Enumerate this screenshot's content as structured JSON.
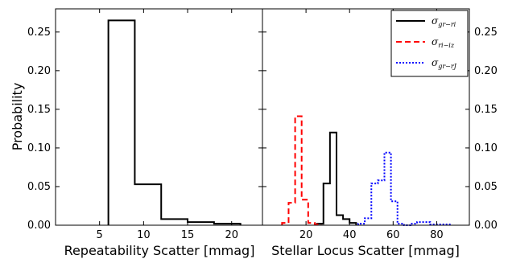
{
  "chart_data": [
    {
      "type": "histogram",
      "xlabel": "Repeatability Scatter [mmag]",
      "ylabel": "Probability",
      "xlim": [
        0,
        23.5
      ],
      "ylim": [
        0,
        0.28
      ],
      "xticks": [
        5,
        10,
        15,
        20
      ],
      "xtick_labels": [
        "5",
        "10",
        "15",
        "20"
      ],
      "yticks": [
        0.0,
        0.05,
        0.1,
        0.15,
        0.2,
        0.25
      ],
      "ytick_labels": [
        "0.00",
        "0.05",
        "0.10",
        "0.15",
        "0.20",
        "0.25"
      ],
      "series": [
        {
          "bin_edges": [
            6,
            9,
            12,
            15,
            18,
            21
          ],
          "values": [
            0.265,
            0.053,
            0.008,
            0.004,
            0.002
          ],
          "color": "#000000",
          "linestyle": "solid"
        }
      ]
    },
    {
      "type": "histogram",
      "xlabel": "Stellar Locus Scatter [mmag]",
      "ylabel": "",
      "xlim": [
        0,
        95
      ],
      "ylim": [
        0,
        0.28
      ],
      "xticks": [
        20,
        40,
        60,
        80
      ],
      "xtick_labels": [
        "20",
        "40",
        "60",
        "80"
      ],
      "yticks": [
        0.0,
        0.05,
        0.1,
        0.15,
        0.2,
        0.25
      ],
      "ytick_labels": [
        "0.00",
        "0.05",
        "0.10",
        "0.15",
        "0.20",
        "0.25"
      ],
      "legend_position": "top-right",
      "series": [
        {
          "name": "σ_{gr−ri}",
          "legend_main": "σ",
          "legend_sub": "gr−ri",
          "color": "#000000",
          "linestyle": "solid",
          "bin_edges": [
            25,
            28,
            31,
            34,
            37,
            40,
            43
          ],
          "values": [
            0.002,
            0.054,
            0.12,
            0.013,
            0.008,
            0.003
          ]
        },
        {
          "name": "σ_{ri−iz}",
          "legend_main": "σ",
          "legend_sub": "ri−iz",
          "color": "#ff0000",
          "linestyle": "dashed",
          "bin_edges": [
            9,
            12,
            15,
            18,
            21,
            24,
            27
          ],
          "values": [
            0.003,
            0.029,
            0.141,
            0.033,
            0.003,
            0.001
          ]
        },
        {
          "name": "σ_{gr−rJ}",
          "legend_main": "σ",
          "legend_sub": "gr−rJ",
          "color": "#0000ff",
          "linestyle": "dotted",
          "bin_edges": [
            44,
            47,
            50,
            53,
            56,
            59,
            62,
            65,
            68,
            71,
            74,
            77,
            80,
            83,
            86
          ],
          "values": [
            0.002,
            0.009,
            0.054,
            0.058,
            0.094,
            0.031,
            0.002,
            0.0,
            0.002,
            0.004,
            0.004,
            0.001,
            0.001,
            0.001
          ]
        }
      ]
    }
  ]
}
